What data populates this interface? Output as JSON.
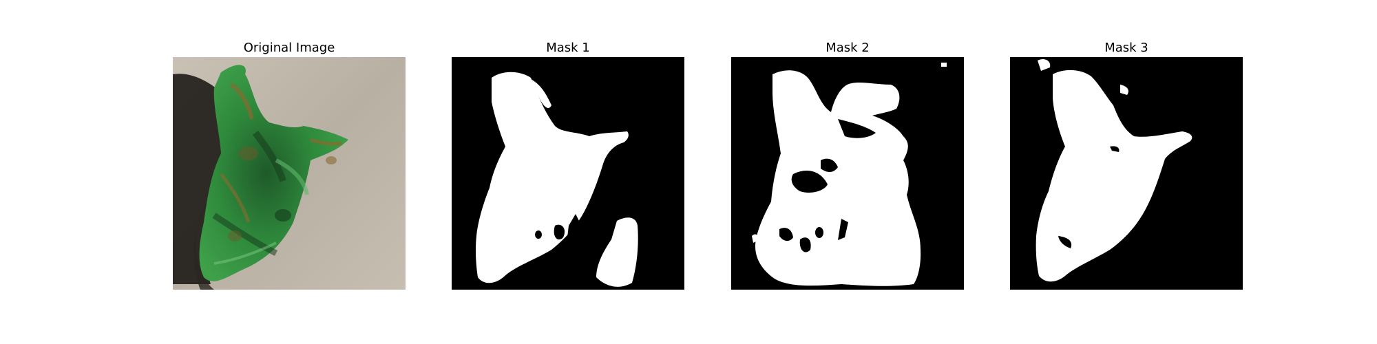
{
  "figure": {
    "panels": [
      {
        "title": "Original Image"
      },
      {
        "title": "Mask 1"
      },
      {
        "title": "Mask 2"
      },
      {
        "title": "Mask 3"
      }
    ]
  },
  "colors": {
    "background": "#ffffff",
    "mask_background": "#000000",
    "mask_foreground": "#ffffff",
    "leaf_green": "#2f8a3c",
    "leaf_dark": "#1e4a26",
    "leaf_lesion": "#8a6a2e",
    "ground": "#bdb5a8"
  }
}
